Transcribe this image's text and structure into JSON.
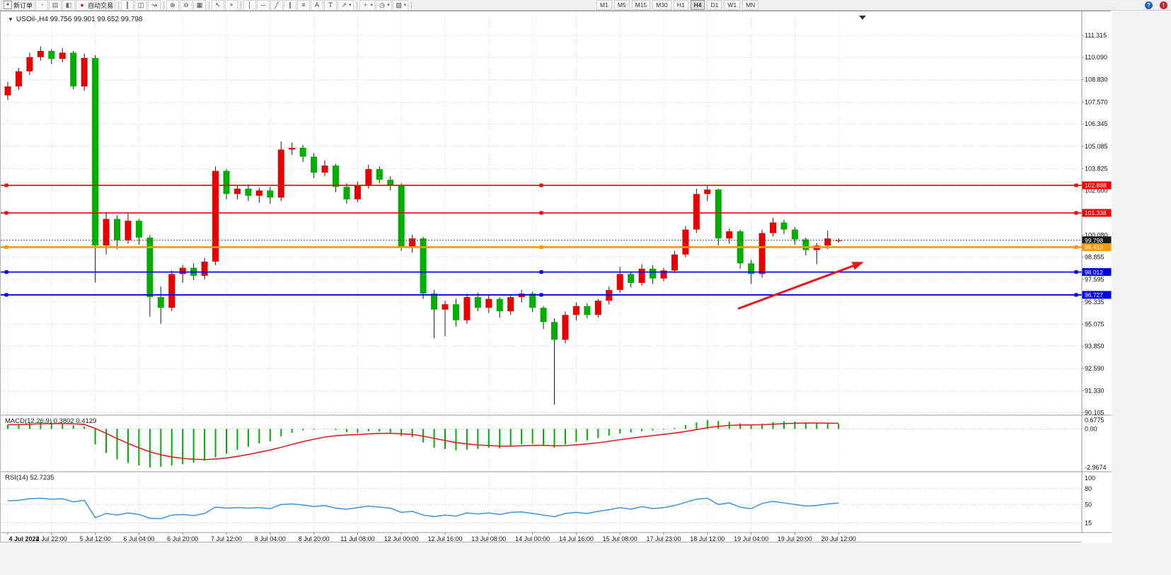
{
  "toolbar": {
    "left_items": [
      {
        "kind": "button",
        "name": "new-order",
        "icon": "new-order",
        "label": "新订单"
      },
      {
        "kind": "icon",
        "name": "market-watch"
      },
      {
        "kind": "icon",
        "name": "data-window"
      },
      {
        "kind": "icon",
        "name": "navigator"
      },
      {
        "kind": "button",
        "name": "autotrading",
        "icon": "autotrading",
        "label": "自动交易"
      },
      {
        "kind": "sep"
      },
      {
        "kind": "icon",
        "name": "bar-chart"
      },
      {
        "kind": "icon",
        "name": "candlestick"
      },
      {
        "kind": "icon",
        "name": "line-chart"
      },
      {
        "kind": "sep"
      },
      {
        "kind": "icon",
        "name": "zoom-in"
      },
      {
        "kind": "icon",
        "name": "zoom-out"
      },
      {
        "kind": "icon",
        "name": "tile-windows"
      },
      {
        "kind": "sep"
      },
      {
        "kind": "icon",
        "name": "cursor"
      },
      {
        "kind": "icon",
        "name": "crosshair"
      },
      {
        "kind": "sep"
      },
      {
        "kind": "icon",
        "name": "vertical-line"
      },
      {
        "kind": "icon",
        "name": "horizontal-line"
      },
      {
        "kind": "icon",
        "name": "trendline"
      },
      {
        "kind": "icon",
        "name": "equidistant-channel"
      },
      {
        "kind": "icon",
        "name": "fibonacci"
      },
      {
        "kind": "icon",
        "name": "text"
      },
      {
        "kind": "icon",
        "name": "text-label"
      },
      {
        "kind": "icon",
        "name": "arrows",
        "caret": true
      },
      {
        "kind": "sep"
      },
      {
        "kind": "icon",
        "name": "indicators",
        "caret": true
      },
      {
        "kind": "icon",
        "name": "periods",
        "caret": true
      },
      {
        "kind": "icon",
        "name": "templates",
        "caret": true
      },
      {
        "kind": "sep"
      }
    ],
    "timeframes": [
      "M1",
      "M5",
      "M15",
      "M30",
      "H1",
      "H4",
      "D1",
      "W1",
      "MN"
    ],
    "active_timeframe": "H4",
    "right_items": [
      {
        "kind": "icon",
        "name": "help"
      },
      {
        "kind": "icon",
        "name": "alert"
      }
    ]
  },
  "chart": {
    "title": "USOil-,H4 99.756 99.901 99.652 99.798",
    "price_axis": [
      "111.315",
      "110.090",
      "108.830",
      "107.570",
      "106.345",
      "105.085",
      "103.825",
      "102.600",
      "101.340",
      "100.080",
      "98.855",
      "97.595",
      "96.335",
      "95.075",
      "93.850",
      "92.590",
      "91.330",
      "90.105"
    ],
    "time_labels": [
      "4 Jul 2022",
      "4 Jul 22:00",
      "5 Jul 12:00",
      "6 Jul 04:00",
      "6 Jul 20:00",
      "7 Jul 12:00",
      "8 Jul 04:00",
      "8 Jul 20:00",
      "11 Jul 08:00",
      "12 Jul 00:00",
      "12 Jul 16:00",
      "13 Jul 08:00",
      "14 Jul 00:00",
      "14 Jul 16:00",
      "15 Jul 08:00",
      "17 Jul 23:00",
      "18 Jul 12:00",
      "19 Jul 04:00",
      "19 Jul 20:00",
      "20 Jul 12:00"
    ],
    "hlines": [
      {
        "price": 102.888,
        "label": "102.888",
        "color": "#f40000",
        "width": 1.6
      },
      {
        "price": 101.338,
        "label": "101.338",
        "color": "#f40000",
        "width": 1.6
      },
      {
        "price": 99.413,
        "label": "99.413",
        "color": "#ff9800",
        "width": 2.6
      },
      {
        "price": 98.012,
        "label": "98.012",
        "color": "#0000e8",
        "width": 1.8
      },
      {
        "price": 96.727,
        "label": "96.727",
        "color": "#0000e8",
        "width": 1.8
      }
    ],
    "bid_price": 99.798,
    "bid_label": "99.798",
    "arrow": {
      "i1": 66.8,
      "p1": 95.95,
      "i2": 78.3,
      "p2": 98.58,
      "color": "#e81818"
    },
    "up_color": "#e60000",
    "down_color": "#00ae00",
    "candles": [
      [
        107.95,
        108.7,
        107.7,
        108.45
      ],
      [
        108.45,
        109.5,
        108.25,
        109.3
      ],
      [
        109.3,
        110.35,
        109.1,
        110.1
      ],
      [
        110.1,
        110.7,
        109.9,
        110.45
      ],
      [
        110.45,
        110.55,
        109.7,
        110.0
      ],
      [
        110.0,
        110.6,
        109.8,
        110.35
      ],
      [
        110.35,
        110.45,
        108.3,
        108.45
      ],
      [
        108.45,
        110.3,
        108.2,
        110.05
      ],
      [
        110.05,
        110.2,
        97.43,
        99.5
      ],
      [
        99.5,
        101.4,
        99.0,
        101.0
      ],
      [
        101.0,
        101.2,
        99.3,
        99.8
      ],
      [
        99.8,
        101.35,
        99.6,
        100.9
      ],
      [
        100.9,
        101.0,
        99.55,
        99.95
      ],
      [
        99.95,
        100.1,
        95.5,
        96.6
      ],
      [
        96.6,
        97.2,
        95.1,
        96.0
      ],
      [
        96.0,
        98.1,
        95.8,
        97.9
      ],
      [
        97.9,
        98.4,
        97.4,
        98.25
      ],
      [
        98.25,
        98.5,
        97.55,
        97.8
      ],
      [
        97.8,
        98.8,
        97.6,
        98.6
      ],
      [
        98.6,
        103.95,
        98.4,
        103.7
      ],
      [
        103.7,
        103.8,
        102.1,
        102.4
      ],
      [
        102.4,
        102.9,
        102.1,
        102.7
      ],
      [
        102.7,
        102.95,
        102.0,
        102.3
      ],
      [
        102.3,
        102.75,
        101.9,
        102.6
      ],
      [
        102.6,
        102.8,
        101.85,
        102.2
      ],
      [
        102.2,
        105.35,
        102.0,
        104.9
      ],
      [
        104.9,
        105.3,
        104.6,
        105.0
      ],
      [
        105.0,
        105.15,
        104.2,
        104.5
      ],
      [
        104.5,
        104.7,
        103.3,
        103.6
      ],
      [
        103.6,
        104.3,
        103.4,
        104.0
      ],
      [
        104.0,
        104.1,
        102.5,
        102.8
      ],
      [
        102.8,
        103.0,
        101.85,
        102.1
      ],
      [
        102.1,
        103.1,
        101.95,
        102.9
      ],
      [
        102.9,
        104.05,
        102.7,
        103.8
      ],
      [
        103.8,
        103.95,
        103.0,
        103.2
      ],
      [
        103.2,
        103.4,
        102.6,
        102.9
      ],
      [
        102.9,
        103.0,
        99.2,
        99.45
      ],
      [
        99.45,
        100.1,
        99.1,
        99.9
      ],
      [
        99.9,
        100.0,
        96.5,
        96.8
      ],
      [
        96.8,
        97.0,
        94.3,
        95.9
      ],
      [
        95.9,
        96.4,
        94.4,
        96.2
      ],
      [
        96.2,
        96.5,
        94.95,
        95.3
      ],
      [
        95.3,
        96.8,
        95.1,
        96.6
      ],
      [
        96.6,
        96.85,
        95.8,
        96.0
      ],
      [
        96.0,
        96.7,
        95.7,
        96.5
      ],
      [
        96.5,
        96.6,
        95.45,
        95.8
      ],
      [
        95.8,
        96.75,
        95.6,
        96.6
      ],
      [
        96.6,
        97.0,
        96.3,
        96.8
      ],
      [
        96.8,
        96.9,
        95.75,
        96.0
      ],
      [
        96.0,
        96.1,
        94.8,
        95.2
      ],
      [
        95.2,
        95.4,
        90.56,
        94.2
      ],
      [
        94.2,
        95.8,
        94.0,
        95.6
      ],
      [
        95.6,
        96.3,
        95.3,
        96.1
      ],
      [
        96.1,
        96.25,
        95.4,
        95.6
      ],
      [
        95.6,
        96.5,
        95.45,
        96.4
      ],
      [
        96.4,
        97.2,
        96.2,
        97.0
      ],
      [
        97.0,
        98.3,
        96.85,
        97.9
      ],
      [
        97.9,
        98.05,
        97.15,
        97.4
      ],
      [
        97.4,
        98.45,
        97.25,
        98.2
      ],
      [
        98.2,
        98.4,
        97.35,
        97.65
      ],
      [
        97.65,
        98.25,
        97.5,
        98.1
      ],
      [
        98.1,
        99.2,
        97.95,
        99.0
      ],
      [
        99.0,
        100.6,
        98.85,
        100.4
      ],
      [
        100.4,
        102.7,
        100.2,
        102.4
      ],
      [
        102.4,
        102.888,
        102.0,
        102.65
      ],
      [
        102.65,
        102.7,
        99.5,
        99.9
      ],
      [
        99.9,
        100.45,
        99.6,
        100.3
      ],
      [
        100.3,
        100.4,
        98.2,
        98.5
      ],
      [
        98.5,
        98.7,
        97.35,
        97.9
      ],
      [
        97.9,
        100.4,
        97.7,
        100.2
      ],
      [
        100.2,
        101.05,
        100.0,
        100.8
      ],
      [
        100.8,
        100.95,
        100.15,
        100.4
      ],
      [
        100.4,
        100.55,
        99.55,
        99.85
      ],
      [
        99.85,
        99.95,
        98.95,
        99.25
      ],
      [
        99.25,
        99.65,
        98.45,
        99.5
      ],
      [
        99.5,
        100.35,
        99.3,
        99.9
      ],
      [
        99.756,
        99.901,
        99.652,
        99.798
      ]
    ]
  },
  "macd": {
    "label": "MACD(12,26,9) 0.3802 0.4129",
    "axis": [
      "0.6775",
      "0.00",
      "-2.9674"
    ],
    "hist_color": "#00ae00",
    "signal_color": "#e02020",
    "signal_period": 9,
    "hist": [
      0.32,
      0.38,
      0.45,
      0.52,
      0.48,
      0.42,
      0.28,
      0.18,
      -1.2,
      -1.85,
      -2.35,
      -2.62,
      -2.82,
      -2.9674,
      -2.92,
      -2.82,
      -2.72,
      -2.6,
      -2.45,
      -2.18,
      -1.9,
      -1.62,
      -1.38,
      -1.12,
      -0.95,
      -0.58,
      -0.3,
      -0.12,
      -0.05,
      0.02,
      -0.1,
      -0.25,
      -0.3,
      -0.18,
      -0.2,
      -0.28,
      -0.55,
      -0.65,
      -1.05,
      -1.45,
      -1.55,
      -1.65,
      -1.6,
      -1.55,
      -1.45,
      -1.5,
      -1.35,
      -1.2,
      -1.15,
      -1.25,
      -1.45,
      -1.2,
      -1.0,
      -0.88,
      -0.7,
      -0.52,
      -0.35,
      -0.28,
      -0.18,
      -0.12,
      -0.05,
      0.08,
      0.3,
      0.5,
      0.6775,
      0.62,
      0.55,
      0.42,
      0.32,
      0.4,
      0.52,
      0.58,
      0.55,
      0.5,
      0.45,
      0.42,
      0.3802
    ]
  },
  "rsi": {
    "label": "RSI(14) 52.7235",
    "axis": [
      "100",
      "80",
      "50",
      "15"
    ],
    "levels": [
      80,
      50,
      15
    ],
    "color": "#3a96dd",
    "values": [
      57,
      58,
      61,
      62,
      60,
      61,
      55,
      58,
      25,
      33,
      30,
      34,
      31,
      24,
      23,
      30,
      31,
      29,
      33,
      45,
      43,
      44,
      43,
      44,
      42,
      50,
      51,
      49,
      46,
      48,
      43,
      41,
      44,
      47,
      45,
      43,
      35,
      37,
      30,
      27,
      30,
      28,
      34,
      32,
      34,
      31,
      35,
      36,
      33,
      30,
      27,
      33,
      35,
      33,
      37,
      40,
      44,
      41,
      46,
      42,
      44,
      48,
      54,
      60,
      62,
      50,
      53,
      45,
      42,
      52,
      56,
      53,
      50,
      47,
      48,
      51,
      52.72
    ]
  }
}
